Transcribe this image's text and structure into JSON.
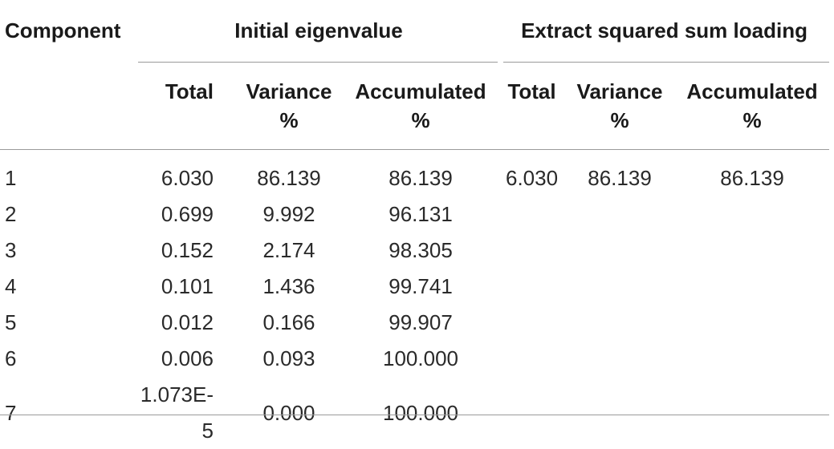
{
  "table": {
    "group_headers": {
      "component": "Component",
      "initial": "Initial eigenvalue",
      "extract": "Extract squared sum loading"
    },
    "sub_headers": {
      "total": "Total",
      "variance_l1": "Variance",
      "variance_l2": "%",
      "accum_l1": "Accumulated",
      "accum_l2": "%",
      "total2": "Total",
      "variance2_l1": "Variance",
      "variance2_l2": "%",
      "accum2_l1": "Accumulated",
      "accum2_l2": "%"
    },
    "rows": [
      [
        "1",
        "6.030",
        "86.139",
        "86.139",
        "6.030",
        "86.139",
        "86.139"
      ],
      [
        "2",
        "0.699",
        "9.992",
        "96.131",
        "",
        "",
        ""
      ],
      [
        "3",
        "0.152",
        "2.174",
        "98.305",
        "",
        "",
        ""
      ],
      [
        "4",
        "0.101",
        "1.436",
        "99.741",
        "",
        "",
        ""
      ],
      [
        "5",
        "0.012",
        "0.166",
        "99.907",
        "",
        "",
        ""
      ],
      [
        "6",
        "0.006",
        "0.093",
        "100.000",
        "",
        "",
        ""
      ],
      [
        "7",
        "1.073E-5",
        "0.000",
        "100.000",
        "",
        "",
        ""
      ]
    ]
  }
}
